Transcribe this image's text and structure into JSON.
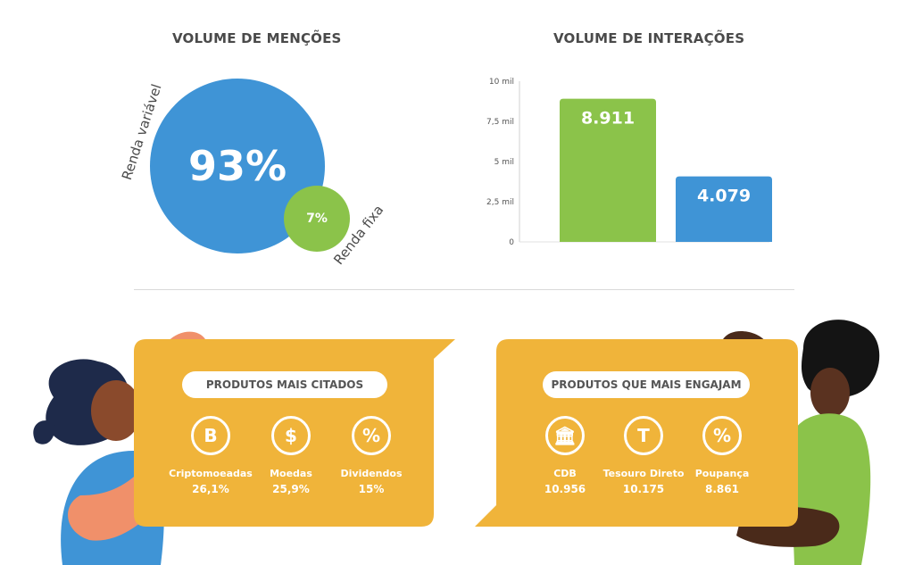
{
  "mentions": {
    "title": "VOLUME DE MENÇÕES",
    "big_value": "93%",
    "big_label": "Renda variável",
    "small_value": "7%",
    "small_label": "Renda fixa"
  },
  "interactions": {
    "title": "VOLUME DE INTERAÇÕES"
  },
  "chart_data": {
    "type": "bar",
    "categories": [
      "",
      ""
    ],
    "values": [
      8911,
      4079
    ],
    "value_labels": [
      "8.911",
      "4.079"
    ],
    "colors": [
      "#8bc34a",
      "#3f94d6"
    ],
    "ylim": [
      0,
      10000
    ],
    "yticks": [
      "0",
      "2,5 mil",
      "5 mil",
      "7,5 mil",
      "10 mil"
    ],
    "grid": false
  },
  "cited": {
    "title": "PRODUTOS MAIS CITADOS",
    "items": [
      {
        "icon": "bitcoin-icon",
        "glyph": "B",
        "label": "Criptomoeadas",
        "value": "26,1%"
      },
      {
        "icon": "dollar-icon",
        "glyph": "$",
        "label": "Moedas",
        "value": "25,9%"
      },
      {
        "icon": "percent-icon",
        "glyph": "%",
        "label": "Dividendos",
        "value": "15%"
      }
    ]
  },
  "engage": {
    "title": "PRODUTOS QUE MAIS ENGAJAM",
    "items": [
      {
        "icon": "bank-icon",
        "glyph": "🏛",
        "label": "CDB",
        "value": "10.956"
      },
      {
        "icon": "tesouro-icon",
        "glyph": "T",
        "label": "Tesouro Direto",
        "value": "10.175"
      },
      {
        "icon": "percent-icon",
        "glyph": "%",
        "label": "Poupança",
        "value": "8.861"
      }
    ]
  },
  "colors": {
    "blue": "#3f94d6",
    "green": "#8bc34a",
    "yellow": "#f0b43a"
  }
}
